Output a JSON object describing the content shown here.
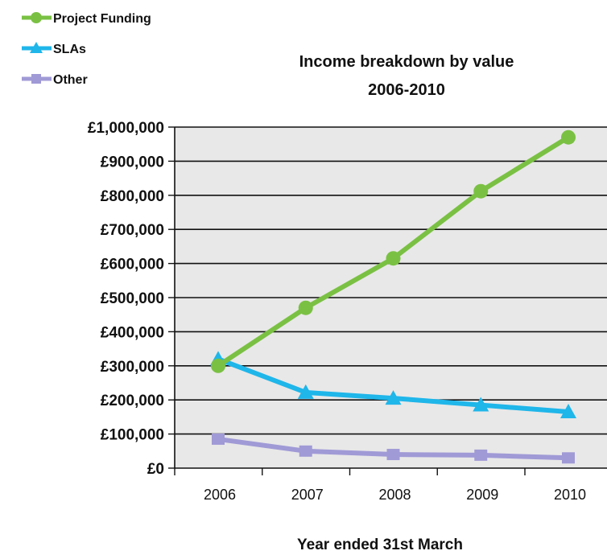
{
  "chart_data": {
    "type": "line",
    "title": "Income breakdown by value",
    "subtitle": "2006-2010",
    "xlabel": "Year ended 31st March",
    "ylabel": "",
    "categories": [
      "2006",
      "2007",
      "2008",
      "2009",
      "2010"
    ],
    "ylim": [
      0,
      1000000
    ],
    "yticks": [
      0,
      100000,
      200000,
      300000,
      400000,
      500000,
      600000,
      700000,
      800000,
      900000,
      1000000
    ],
    "ytick_labels": [
      "£0",
      "£100,000",
      "£200,000",
      "£300,000",
      "£400,000",
      "£500,000",
      "£600,000",
      "£700,000",
      "£800,000",
      "£900,000",
      "£1,000,000"
    ],
    "grid": true,
    "legend_position": "top-left",
    "series": [
      {
        "name": "Project Funding",
        "color": "#7ac143",
        "marker": "circle",
        "values": [
          300000,
          470000,
          615000,
          812000,
          970000
        ]
      },
      {
        "name": "SLAs",
        "color": "#1fb6ea",
        "marker": "triangle",
        "values": [
          320000,
          222000,
          205000,
          185000,
          165000
        ]
      },
      {
        "name": "Other",
        "color": "#a09ad6",
        "marker": "square",
        "values": [
          85000,
          50000,
          40000,
          38000,
          30000
        ]
      }
    ]
  }
}
